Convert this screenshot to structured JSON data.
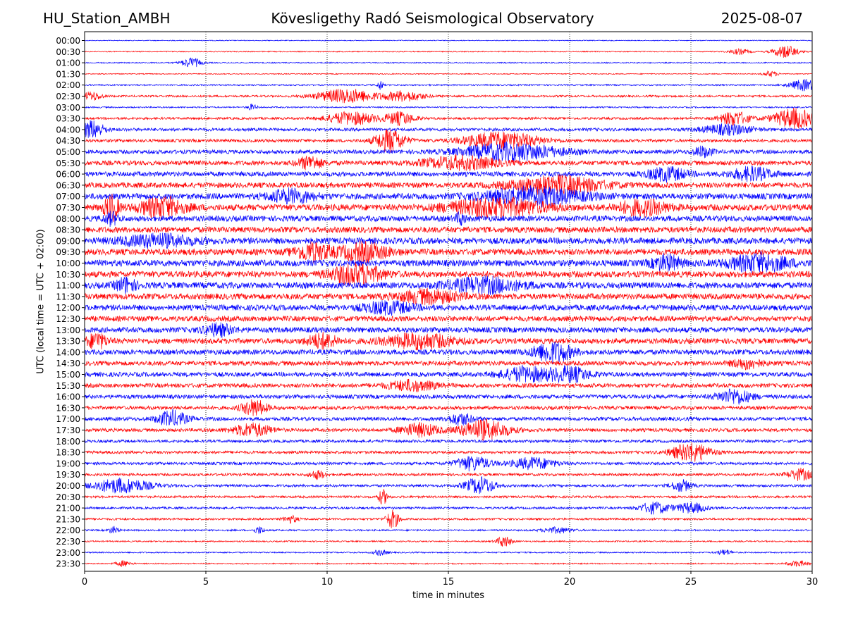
{
  "header": {
    "station": "HU_Station_AMBH",
    "observatory": "Kövesligethy Radó Seismological Observatory",
    "date": "2025-08-07"
  },
  "chart_data": {
    "type": "line",
    "title": "Kövesligethy Radó Seismological Observatory",
    "xlabel": "time in minutes",
    "ylabel": "UTC (local time = UTC + 02:00)",
    "xlim": [
      0,
      30
    ],
    "xticks": [
      0,
      5,
      10,
      15,
      20,
      25,
      30
    ],
    "grid": "vertical dotted at each x tick",
    "row_labels": [
      "00:00",
      "00:30",
      "01:00",
      "01:30",
      "02:00",
      "02:30",
      "03:00",
      "03:30",
      "04:00",
      "04:30",
      "05:00",
      "05:30",
      "06:00",
      "06:30",
      "07:00",
      "07:30",
      "08:00",
      "08:30",
      "09:00",
      "09:30",
      "10:00",
      "10:30",
      "11:00",
      "11:30",
      "12:00",
      "12:30",
      "13:00",
      "13:30",
      "14:00",
      "14:30",
      "15:00",
      "15:30",
      "16:00",
      "16:30",
      "17:00",
      "17:30",
      "18:00",
      "18:30",
      "19:00",
      "19:30",
      "20:00",
      "20:30",
      "21:00",
      "21:30",
      "22:00",
      "22:30",
      "23:00",
      "23:30"
    ],
    "colors": {
      "even_rows": "#0000ff",
      "odd_rows": "#ff0000"
    },
    "noise_levels": [
      0.6,
      0.7,
      0.8,
      0.7,
      1.0,
      1.4,
      1.0,
      1.6,
      2.2,
      2.2,
      2.8,
      3.2,
      3.4,
      3.8,
      4.2,
      4.4,
      4.0,
      4.2,
      4.4,
      4.4,
      4.6,
      4.4,
      4.4,
      4.2,
      4.0,
      3.8,
      3.8,
      3.8,
      3.6,
      3.2,
      3.2,
      3.0,
      2.8,
      2.6,
      2.6,
      2.4,
      2.0,
      2.0,
      2.0,
      1.8,
      1.8,
      1.6,
      1.6,
      1.4,
      1.2,
      1.0,
      0.9,
      0.9
    ],
    "events": [
      {
        "row": 1,
        "minute": 28.9,
        "amp": 9,
        "width": 0.5
      },
      {
        "row": 1,
        "minute": 27.0,
        "amp": 4,
        "width": 0.4
      },
      {
        "row": 2,
        "minute": 4.4,
        "amp": 7,
        "width": 0.4
      },
      {
        "row": 3,
        "minute": 28.3,
        "amp": 4,
        "width": 0.3
      },
      {
        "row": 4,
        "minute": 12.2,
        "amp": 8,
        "width": 0.1
      },
      {
        "row": 4,
        "minute": 29.7,
        "amp": 8,
        "width": 0.6
      },
      {
        "row": 5,
        "minute": 10.8,
        "amp": 10,
        "width": 1.2
      },
      {
        "row": 5,
        "minute": 13.2,
        "amp": 7,
        "width": 0.8
      },
      {
        "row": 5,
        "minute": 0.3,
        "amp": 6,
        "width": 0.4
      },
      {
        "row": 6,
        "minute": 6.9,
        "amp": 4,
        "width": 0.2
      },
      {
        "row": 7,
        "minute": 11.0,
        "amp": 9,
        "width": 1.0
      },
      {
        "row": 7,
        "minute": 13.0,
        "amp": 9,
        "width": 0.6
      },
      {
        "row": 7,
        "minute": 26.8,
        "amp": 10,
        "width": 0.6
      },
      {
        "row": 7,
        "minute": 29.3,
        "amp": 14,
        "width": 0.9
      },
      {
        "row": 8,
        "minute": 0.3,
        "amp": 12,
        "width": 0.5
      },
      {
        "row": 8,
        "minute": 26.5,
        "amp": 7,
        "width": 1.0
      },
      {
        "row": 9,
        "minute": 12.6,
        "amp": 16,
        "width": 0.6
      },
      {
        "row": 9,
        "minute": 17.2,
        "amp": 12,
        "width": 1.5
      },
      {
        "row": 10,
        "minute": 17.6,
        "amp": 12,
        "width": 2.0
      },
      {
        "row": 10,
        "minute": 25.5,
        "amp": 7,
        "width": 0.4
      },
      {
        "row": 11,
        "minute": 9.3,
        "amp": 9,
        "width": 0.5
      },
      {
        "row": 11,
        "minute": 15.5,
        "amp": 9,
        "width": 1.5
      },
      {
        "row": 12,
        "minute": 24.0,
        "amp": 9,
        "width": 0.8
      },
      {
        "row": 12,
        "minute": 27.5,
        "amp": 9,
        "width": 0.8
      },
      {
        "row": 13,
        "minute": 19.5,
        "amp": 12,
        "width": 1.8
      },
      {
        "row": 14,
        "minute": 8.5,
        "amp": 9,
        "width": 0.9
      },
      {
        "row": 14,
        "minute": 18.5,
        "amp": 12,
        "width": 2.0
      },
      {
        "row": 15,
        "minute": 1.1,
        "amp": 18,
        "width": 0.3
      },
      {
        "row": 15,
        "minute": 3.2,
        "amp": 14,
        "width": 0.9
      },
      {
        "row": 15,
        "minute": 17.0,
        "amp": 12,
        "width": 2.0
      },
      {
        "row": 15,
        "minute": 23.0,
        "amp": 10,
        "width": 1.0
      },
      {
        "row": 16,
        "minute": 1.1,
        "amp": 8,
        "width": 0.3
      },
      {
        "row": 16,
        "minute": 15.5,
        "amp": 8,
        "width": 0.2
      },
      {
        "row": 18,
        "minute": 3.0,
        "amp": 8,
        "width": 1.5
      },
      {
        "row": 19,
        "minute": 9.4,
        "amp": 12,
        "width": 0.7
      },
      {
        "row": 19,
        "minute": 11.5,
        "amp": 12,
        "width": 1.0
      },
      {
        "row": 20,
        "minute": 24.0,
        "amp": 10,
        "width": 0.6
      },
      {
        "row": 20,
        "minute": 27.8,
        "amp": 12,
        "width": 1.2
      },
      {
        "row": 21,
        "minute": 11.2,
        "amp": 14,
        "width": 1.0
      },
      {
        "row": 22,
        "minute": 1.7,
        "amp": 10,
        "width": 0.4
      },
      {
        "row": 22,
        "minute": 16.5,
        "amp": 10,
        "width": 1.5
      },
      {
        "row": 23,
        "minute": 14.2,
        "amp": 9,
        "width": 1.2
      },
      {
        "row": 24,
        "minute": 12.5,
        "amp": 8,
        "width": 1.0
      },
      {
        "row": 26,
        "minute": 5.5,
        "amp": 8,
        "width": 0.6
      },
      {
        "row": 27,
        "minute": 0.5,
        "amp": 11,
        "width": 0.4
      },
      {
        "row": 27,
        "minute": 9.8,
        "amp": 10,
        "width": 0.6
      },
      {
        "row": 27,
        "minute": 13.8,
        "amp": 10,
        "width": 1.4
      },
      {
        "row": 28,
        "minute": 19.3,
        "amp": 14,
        "width": 0.8
      },
      {
        "row": 29,
        "minute": 27.3,
        "amp": 7,
        "width": 0.6
      },
      {
        "row": 30,
        "minute": 18.2,
        "amp": 10,
        "width": 1.0
      },
      {
        "row": 30,
        "minute": 20.0,
        "amp": 10,
        "width": 0.8
      },
      {
        "row": 31,
        "minute": 13.5,
        "amp": 7,
        "width": 1.0
      },
      {
        "row": 32,
        "minute": 26.8,
        "amp": 10,
        "width": 0.7
      },
      {
        "row": 33,
        "minute": 7.0,
        "amp": 11,
        "width": 0.5
      },
      {
        "row": 34,
        "minute": 3.6,
        "amp": 11,
        "width": 0.6
      },
      {
        "row": 34,
        "minute": 15.5,
        "amp": 8,
        "width": 0.5
      },
      {
        "row": 35,
        "minute": 6.9,
        "amp": 9,
        "width": 0.8
      },
      {
        "row": 35,
        "minute": 13.8,
        "amp": 9,
        "width": 0.8
      },
      {
        "row": 35,
        "minute": 16.5,
        "amp": 14,
        "width": 1.0
      },
      {
        "row": 37,
        "minute": 25.0,
        "amp": 13,
        "width": 0.8
      },
      {
        "row": 38,
        "minute": 16.0,
        "amp": 10,
        "width": 0.7
      },
      {
        "row": 38,
        "minute": 18.5,
        "amp": 8,
        "width": 0.9
      },
      {
        "row": 39,
        "minute": 29.5,
        "amp": 8,
        "width": 0.5
      },
      {
        "row": 39,
        "minute": 9.6,
        "amp": 6,
        "width": 0.3
      },
      {
        "row": 40,
        "minute": 1.5,
        "amp": 10,
        "width": 1.2
      },
      {
        "row": 40,
        "minute": 16.3,
        "amp": 12,
        "width": 0.6
      },
      {
        "row": 40,
        "minute": 24.6,
        "amp": 8,
        "width": 0.4
      },
      {
        "row": 41,
        "minute": 12.3,
        "amp": 10,
        "width": 0.2
      },
      {
        "row": 42,
        "minute": 23.5,
        "amp": 8,
        "width": 0.6
      },
      {
        "row": 42,
        "minute": 25.0,
        "amp": 7,
        "width": 0.6
      },
      {
        "row": 43,
        "minute": 12.7,
        "amp": 13,
        "width": 0.25
      },
      {
        "row": 43,
        "minute": 8.5,
        "amp": 5,
        "width": 0.3
      },
      {
        "row": 44,
        "minute": 1.2,
        "amp": 5,
        "width": 0.2
      },
      {
        "row": 44,
        "minute": 7.2,
        "amp": 5,
        "width": 0.2
      },
      {
        "row": 44,
        "minute": 19.5,
        "amp": 4,
        "width": 0.6
      },
      {
        "row": 45,
        "minute": 17.3,
        "amp": 8,
        "width": 0.3
      },
      {
        "row": 46,
        "minute": 12.2,
        "amp": 4,
        "width": 0.3
      },
      {
        "row": 46,
        "minute": 26.4,
        "amp": 4,
        "width": 0.3
      },
      {
        "row": 47,
        "minute": 1.6,
        "amp": 4,
        "width": 0.3
      },
      {
        "row": 47,
        "minute": 29.4,
        "amp": 4,
        "width": 0.4
      }
    ]
  }
}
